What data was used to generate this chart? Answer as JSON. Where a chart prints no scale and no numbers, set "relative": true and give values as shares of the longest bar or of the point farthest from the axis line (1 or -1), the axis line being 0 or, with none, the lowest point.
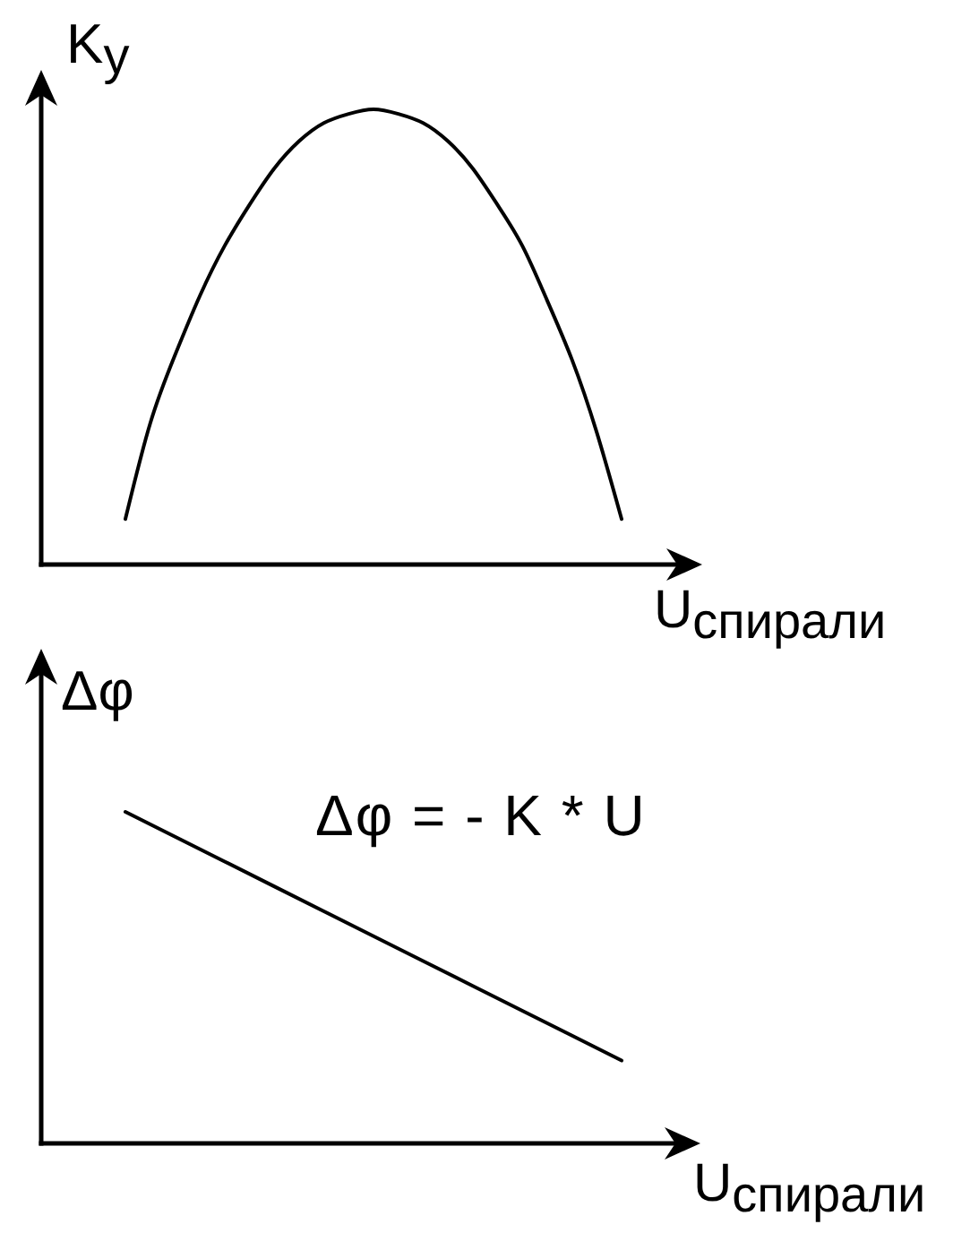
{
  "chart_data": [
    {
      "type": "line",
      "relative": true,
      "ylabel": "K$_{y}$",
      "xlabel": "U$_{спирали}$",
      "categories": [
        null,
        null,
        null,
        null,
        null,
        null,
        null,
        null,
        null,
        null,
        null,
        null,
        null,
        null,
        null,
        null,
        null,
        null,
        null,
        null,
        null
      ],
      "values": [
        0.1,
        0.31,
        0.46,
        0.59,
        0.7,
        0.79,
        0.87,
        0.93,
        0.97,
        0.99,
        1.0,
        0.99,
        0.97,
        0.93,
        0.87,
        0.79,
        0.7,
        0.58,
        0.45,
        0.29,
        0.1
      ],
      "color": "#000000",
      "line_style": "solid"
    },
    {
      "type": "line",
      "relative": true,
      "ylabel": "Δφ",
      "xlabel": "U$_{спирали}$",
      "categories": [
        null,
        null,
        null,
        null,
        null,
        null
      ],
      "values": [
        1,
        0.85,
        0.7,
        0.55,
        0.4,
        0.25
      ],
      "color": "#000000",
      "line_style": "solid",
      "annotations": [
        "Δφ = - K * U"
      ]
    }
  ]
}
